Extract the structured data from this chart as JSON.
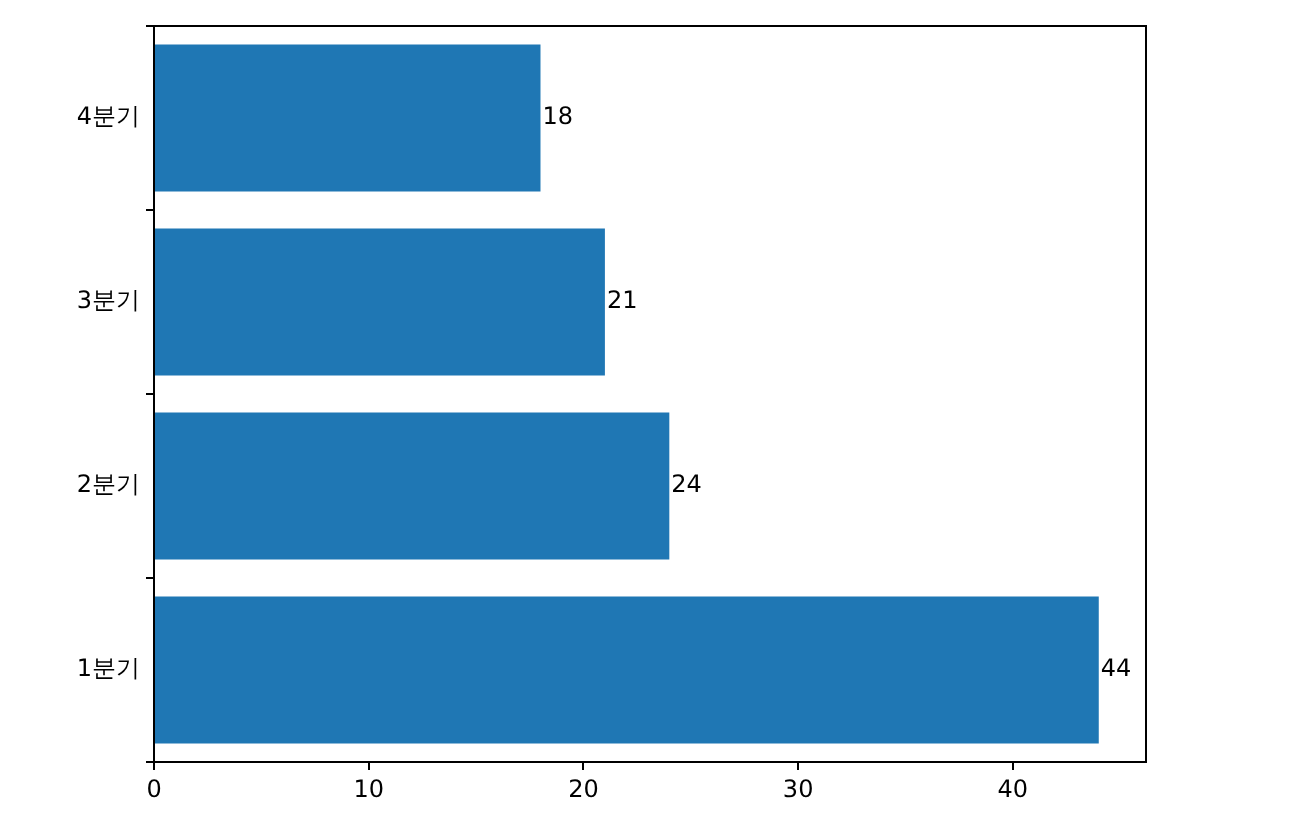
{
  "chart_data": {
    "type": "bar",
    "orientation": "horizontal",
    "categories": [
      "4분기",
      "3분기",
      "2분기",
      "1분기"
    ],
    "values": [
      18,
      21,
      24,
      44
    ],
    "color": "#1f77b4",
    "xlim": [
      0,
      46.2
    ],
    "xticks": [
      0,
      10,
      20,
      30,
      40
    ],
    "data_labels": true,
    "grid": false,
    "legend": false
  }
}
